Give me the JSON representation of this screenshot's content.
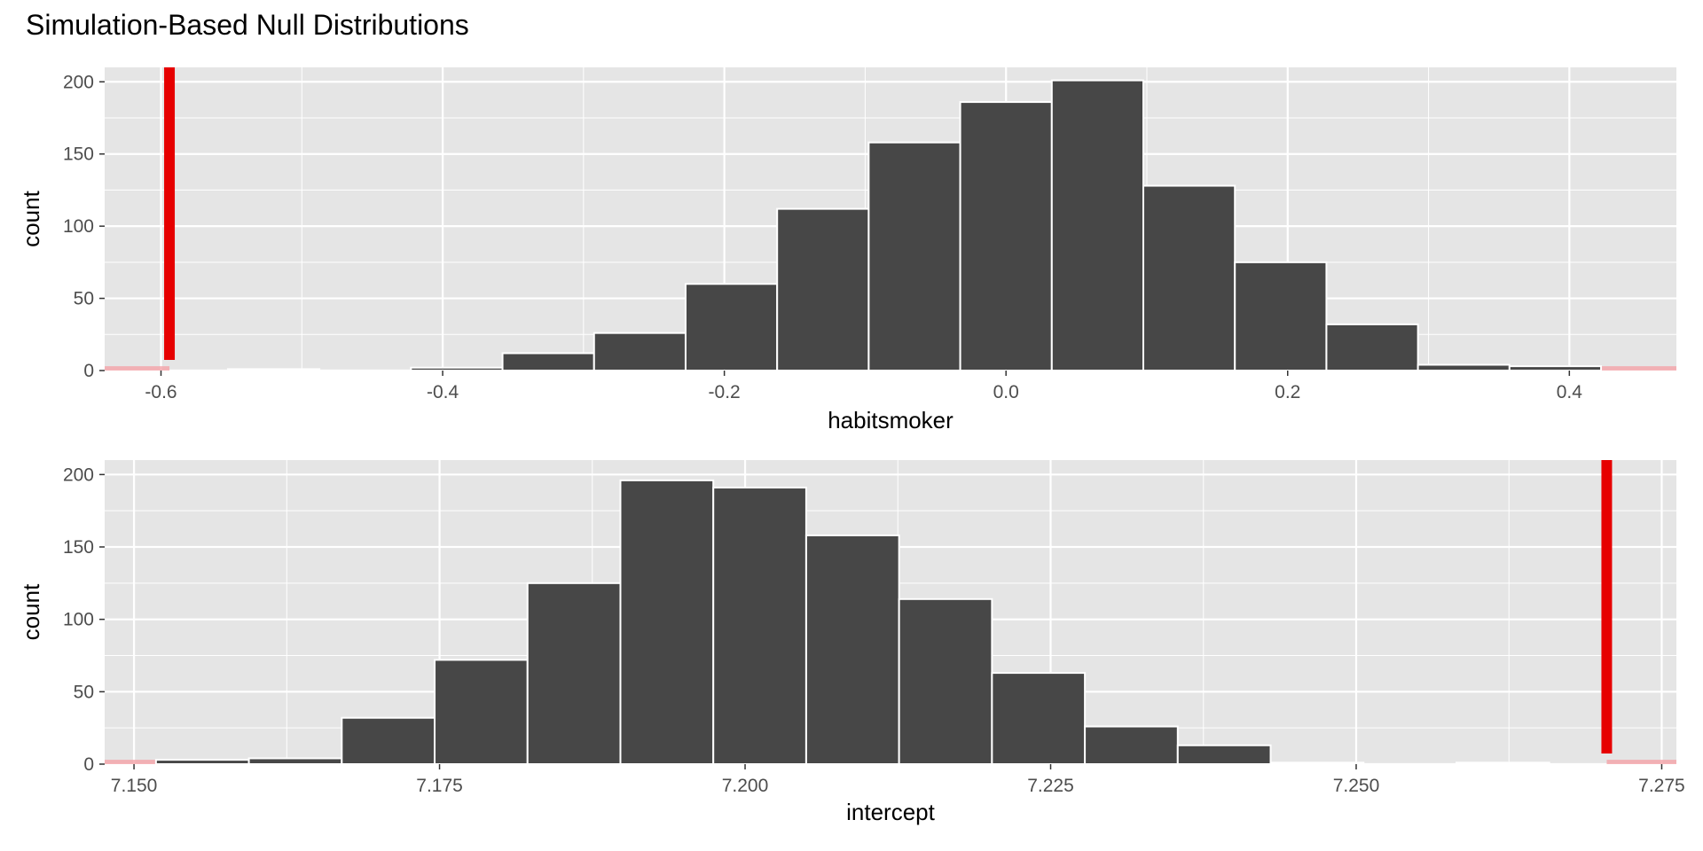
{
  "title": "Simulation-Based Null Distributions",
  "colors": {
    "panel_bg": "#e5e5e5",
    "grid": "#ffffff",
    "bar_fill": "#474747",
    "bar_stroke": "#ffffff",
    "obs_line": "#e60000",
    "shade": "#f4a3a8"
  },
  "chart_data": [
    {
      "type": "bar",
      "subtype": "histogram",
      "xlabel": "habitsmoker",
      "ylabel": "count",
      "xlim": [
        -0.64,
        0.476
      ],
      "ylim": [
        0,
        210
      ],
      "x_ticks": [
        -0.6,
        -0.4,
        -0.2,
        0.0,
        0.2,
        0.4
      ],
      "x_tick_labels": [
        "-0.6",
        "-0.4",
        "-0.2",
        "0.0",
        "0.2",
        "0.4"
      ],
      "y_ticks": [
        0,
        50,
        100,
        150,
        200
      ],
      "y_tick_labels": [
        "0",
        "50",
        "100",
        "150",
        "200"
      ],
      "bin_width": 0.065,
      "bin_centers": [
        -0.52,
        -0.455,
        -0.39,
        -0.325,
        -0.26,
        -0.195,
        -0.13,
        -0.065,
        0.0,
        0.065,
        0.13,
        0.195,
        0.26,
        0.325,
        0.39
      ],
      "counts": [
        1,
        0,
        2,
        12,
        26,
        60,
        112,
        158,
        186,
        201,
        128,
        75,
        32,
        4,
        3
      ],
      "observed_statistic": -0.594,
      "shade_direction": "two-sided",
      "shaded_regions": [
        [
          -0.64,
          -0.594
        ],
        [
          0.416,
          0.476
        ]
      ]
    },
    {
      "type": "bar",
      "subtype": "histogram",
      "xlabel": "intercept",
      "ylabel": "count",
      "xlim": [
        7.1476,
        7.2762
      ],
      "ylim": [
        0,
        210
      ],
      "x_ticks": [
        7.15,
        7.175,
        7.2,
        7.225,
        7.25,
        7.275
      ],
      "x_tick_labels": [
        "7.150",
        "7.175",
        "7.200",
        "7.225",
        "7.250",
        "7.275"
      ],
      "y_ticks": [
        0,
        50,
        100,
        150,
        200
      ],
      "y_tick_labels": [
        "0",
        "50",
        "100",
        "150",
        "200"
      ],
      "bin_width": 0.0076,
      "bin_centers": [
        7.1556,
        7.1632,
        7.1708,
        7.1784,
        7.186,
        7.1936,
        7.2012,
        7.2088,
        7.2164,
        7.224,
        7.2316,
        7.2392,
        7.2468,
        7.2544,
        7.262
      ],
      "counts": [
        3,
        4,
        32,
        72,
        125,
        196,
        191,
        158,
        114,
        63,
        26,
        13,
        1,
        0,
        1
      ],
      "observed_statistic": 7.2705,
      "shade_direction": "two-sided",
      "shaded_regions": [
        [
          7.1476,
          7.1526
        ],
        [
          7.2705,
          7.2762
        ]
      ]
    }
  ]
}
